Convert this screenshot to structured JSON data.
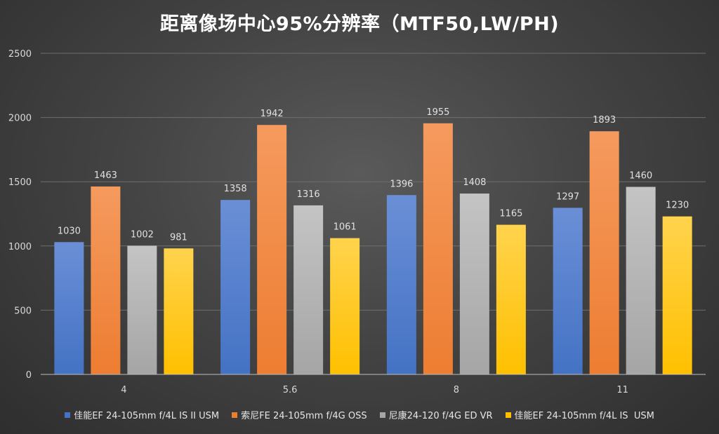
{
  "chart_data": {
    "type": "bar",
    "title": "距离像场中心95%分辨率（MTF50,LW/PH)",
    "xlabel": "",
    "ylabel": "",
    "ylim": [
      0,
      2500
    ],
    "yticks": [
      "0",
      "500",
      "1000",
      "1500",
      "2000",
      "2500"
    ],
    "ytick_values": [
      0,
      500,
      1000,
      1500,
      2000,
      2500
    ],
    "categories": [
      "4",
      "5.6",
      "8",
      "11"
    ],
    "grid": true,
    "legend_position": "bottom",
    "series": [
      {
        "name": "佳能EF 24-105mm f/4L IS II USM",
        "color": "#4472c4",
        "color_light": "#6a8fd6",
        "values": [
          1030,
          1358,
          1396,
          1297
        ]
      },
      {
        "name": "索尼FE 24-105mm f/4G OSS",
        "color": "#ed7d31",
        "color_light": "#f59a5e",
        "values": [
          1463,
          1942,
          1955,
          1893
        ]
      },
      {
        "name": "尼康24-120 f/4G ED VR",
        "color": "#a5a5a5",
        "color_light": "#c4c4c4",
        "values": [
          1002,
          1316,
          1408,
          1460
        ]
      },
      {
        "name": "佳能EF 24-105mm f/4L IS  USM",
        "color": "#ffc000",
        "color_light": "#ffd34d",
        "values": [
          981,
          1061,
          1165,
          1230
        ]
      }
    ],
    "data_labels": [
      [
        "1030",
        "1358",
        "1396",
        "1297"
      ],
      [
        "1463",
        "1942",
        "1955",
        "1893"
      ],
      [
        "1002",
        "1316",
        "1408",
        "1460"
      ],
      [
        "981",
        "1061",
        "1165",
        "1230"
      ]
    ]
  }
}
